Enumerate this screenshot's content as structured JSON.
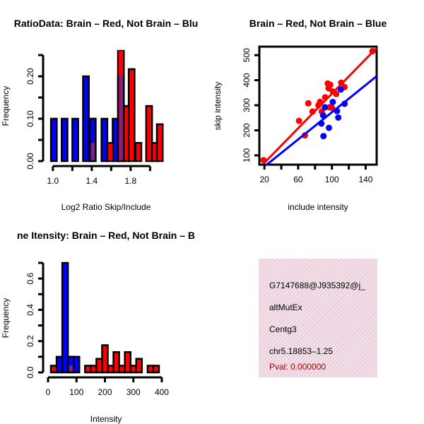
{
  "colors": {
    "red": "#ff0000",
    "blue": "#0000ff",
    "overlap": "#8b1a8b",
    "pval": "#aa0000",
    "panel": "#f9dcf0"
  },
  "chart_data": [
    {
      "type": "bar",
      "title": "RatioData: Brain – Red, Not Brain – Blu",
      "xlabel": "Log2 Ratio Skip/Include",
      "ylabel": "Frequency",
      "xlim": [
        0.95,
        2.15
      ],
      "ylim": [
        0,
        0.25
      ],
      "xticks": [
        1.0,
        1.2,
        1.4,
        1.6,
        1.8,
        2.0
      ],
      "xtick_labels": [
        "1.0",
        "",
        "1.4",
        "",
        "1.8",
        ""
      ],
      "yticks": [
        0,
        0.05,
        0.1,
        0.15,
        0.2,
        0.25
      ],
      "ytick_labels": [
        "0.00",
        "",
        "0.10",
        "",
        "0.20",
        ""
      ],
      "bin_width": 0.06,
      "series": [
        {
          "name": "Not Brain",
          "color": "blue",
          "bins": [
            [
              0.98,
              0.1
            ],
            [
              1.09,
              0.1
            ],
            [
              1.2,
              0.1
            ],
            [
              1.31,
              0.2
            ],
            [
              1.38,
              0.1
            ],
            [
              1.5,
              0.1
            ],
            [
              1.615,
              0.1
            ],
            [
              1.67,
              0.2
            ]
          ]
        },
        {
          "name": "Brain",
          "color": "red",
          "bins": [
            [
              1.38,
              0.043
            ],
            [
              1.56,
              0.043
            ],
            [
              1.67,
              0.26
            ],
            [
              1.73,
              0.13
            ],
            [
              1.78,
              0.217
            ],
            [
              1.85,
              0.043
            ],
            [
              1.96,
              0.13
            ],
            [
              2.02,
              0.043
            ],
            [
              2.07,
              0.087
            ]
          ]
        }
      ]
    },
    {
      "type": "scatter",
      "title": "Brain – Red, Not Brain – Blue",
      "xlabel": "include intensity",
      "ylabel": "skip intensity",
      "xlim": [
        14,
        153
      ],
      "ylim": [
        63,
        534
      ],
      "xticks": [
        20,
        40,
        60,
        80,
        100,
        120,
        140
      ],
      "xtick_labels": [
        "20",
        "",
        "60",
        "",
        "100",
        "",
        "140"
      ],
      "yticks": [
        100,
        200,
        300,
        400,
        500
      ],
      "ytick_labels": [
        "100",
        "200",
        "300",
        "400",
        "500"
      ],
      "series": [
        {
          "name": "Brain",
          "color": "red",
          "points": [
            [
              19,
              81
            ],
            [
              68,
              180
            ],
            [
              61,
              238
            ],
            [
              72,
              308
            ],
            [
              77,
              275
            ],
            [
              84,
              300
            ],
            [
              86,
              314
            ],
            [
              88,
              275
            ],
            [
              95,
              387
            ],
            [
              96,
              368
            ],
            [
              98,
              382
            ],
            [
              92,
              332
            ],
            [
              97,
              292
            ],
            [
              100,
              290
            ],
            [
              101,
              355
            ],
            [
              105,
              345
            ],
            [
              111,
              390
            ],
            [
              115,
              373
            ],
            [
              148,
              516
            ]
          ],
          "fit": [
            [
              19,
              67
            ],
            [
              153,
              529
            ]
          ]
        },
        {
          "name": "Not Brain",
          "color": "blue",
          "points": [
            [
              91.7,
              292
            ],
            [
              89.5,
              260
            ],
            [
              87.5,
              227
            ],
            [
              96.5,
              210
            ],
            [
              90,
              177
            ],
            [
              101,
              313
            ],
            [
              106,
              277
            ],
            [
              107.5,
              251
            ],
            [
              110.5,
              363
            ],
            [
              115,
              306
            ]
          ],
          "fit": [
            [
              21,
              58
            ],
            [
              153,
              416
            ]
          ]
        }
      ]
    },
    {
      "type": "bar",
      "title": "ne Itensity: Brain – Red, Not Brain – B",
      "xlabel": "Intensity",
      "ylabel": "Frequency",
      "xlim": [
        0,
        410
      ],
      "ylim": [
        0,
        0.7
      ],
      "xticks": [
        0,
        100,
        200,
        300,
        400
      ],
      "xtick_labels": [
        "0",
        "100",
        "200",
        "300",
        "400"
      ],
      "yticks": [
        0,
        0.1,
        0.2,
        0.3,
        0.4,
        0.5,
        0.6,
        0.7
      ],
      "ytick_labels": [
        "0.0",
        "",
        "0.2",
        "",
        "0.4",
        "",
        "0.6",
        ""
      ],
      "bin_width": 20,
      "series": [
        {
          "name": "Not Brain",
          "color": "blue",
          "bins": [
            [
              30,
              0.1
            ],
            [
              50,
              0.7
            ],
            [
              70,
              0.1
            ],
            [
              90,
              0.1
            ]
          ]
        },
        {
          "name": "Brain",
          "color": "red",
          "bins": [
            [
              10,
              0.043
            ],
            [
              70,
              0.043
            ],
            [
              130,
              0.043
            ],
            [
              150,
              0.043
            ],
            [
              170,
              0.087
            ],
            [
              190,
              0.174
            ],
            [
              210,
              0.043
            ],
            [
              230,
              0.13
            ],
            [
              250,
              0.043
            ],
            [
              270,
              0.13
            ],
            [
              290,
              0.043
            ],
            [
              310,
              0.087
            ],
            [
              350,
              0.043
            ],
            [
              370,
              0.043
            ]
          ]
        }
      ]
    }
  ],
  "info": {
    "lines": [
      "G7147688@J935392@j_",
      "altMutEx",
      "Centg3",
      "chr5.18853–1.25"
    ],
    "pval": "Pval: 0.000000"
  }
}
